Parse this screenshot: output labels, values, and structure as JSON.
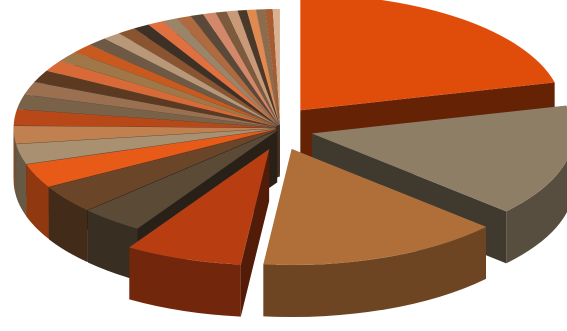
{
  "chart_data": {
    "type": "pie",
    "style": "3d-exploded",
    "legend": "none",
    "data_labels": "none",
    "slices": [
      {
        "value": 19.0,
        "color": "#e04c0a"
      },
      {
        "value": 14.0,
        "color": "#8e7e66"
      },
      {
        "value": 13.5,
        "color": "#b06f38"
      },
      {
        "value": 6.5,
        "color": "#b83e12"
      },
      {
        "value": 3.5,
        "color": "#5a4a36"
      },
      {
        "value": 3.5,
        "color": "#6b4528"
      },
      {
        "value": 3.0,
        "color": "#e85a18"
      },
      {
        "value": 2.5,
        "color": "#a89070"
      },
      {
        "value": 2.2,
        "color": "#c08050"
      },
      {
        "value": 2.0,
        "color": "#b84818"
      },
      {
        "value": 1.8,
        "color": "#7a6248"
      },
      {
        "value": 1.6,
        "color": "#9a7050"
      },
      {
        "value": 1.5,
        "color": "#5c3a22"
      },
      {
        "value": 1.4,
        "color": "#d86a38"
      },
      {
        "value": 1.3,
        "color": "#a07848"
      },
      {
        "value": 1.2,
        "color": "#c85a20"
      },
      {
        "value": 1.1,
        "color": "#6e5a44"
      },
      {
        "value": 1.0,
        "color": "#b89878"
      },
      {
        "value": 1.0,
        "color": "#8a5430"
      },
      {
        "value": 0.9,
        "color": "#3e3024"
      },
      {
        "value": 0.9,
        "color": "#e07040"
      },
      {
        "value": 0.8,
        "color": "#9c8468"
      },
      {
        "value": 0.8,
        "color": "#b06a40"
      },
      {
        "value": 0.7,
        "color": "#5a4838"
      },
      {
        "value": 0.7,
        "color": "#d4886a"
      },
      {
        "value": 0.6,
        "color": "#7c5a3c"
      },
      {
        "value": 0.6,
        "color": "#c89a78"
      },
      {
        "value": 0.5,
        "color": "#4a3828"
      },
      {
        "value": 0.5,
        "color": "#e08a50"
      },
      {
        "value": 0.5,
        "color": "#8c6c4c"
      },
      {
        "value": 0.4,
        "color": "#a85a30"
      },
      {
        "value": 0.4,
        "color": "#d8b090"
      }
    ]
  }
}
